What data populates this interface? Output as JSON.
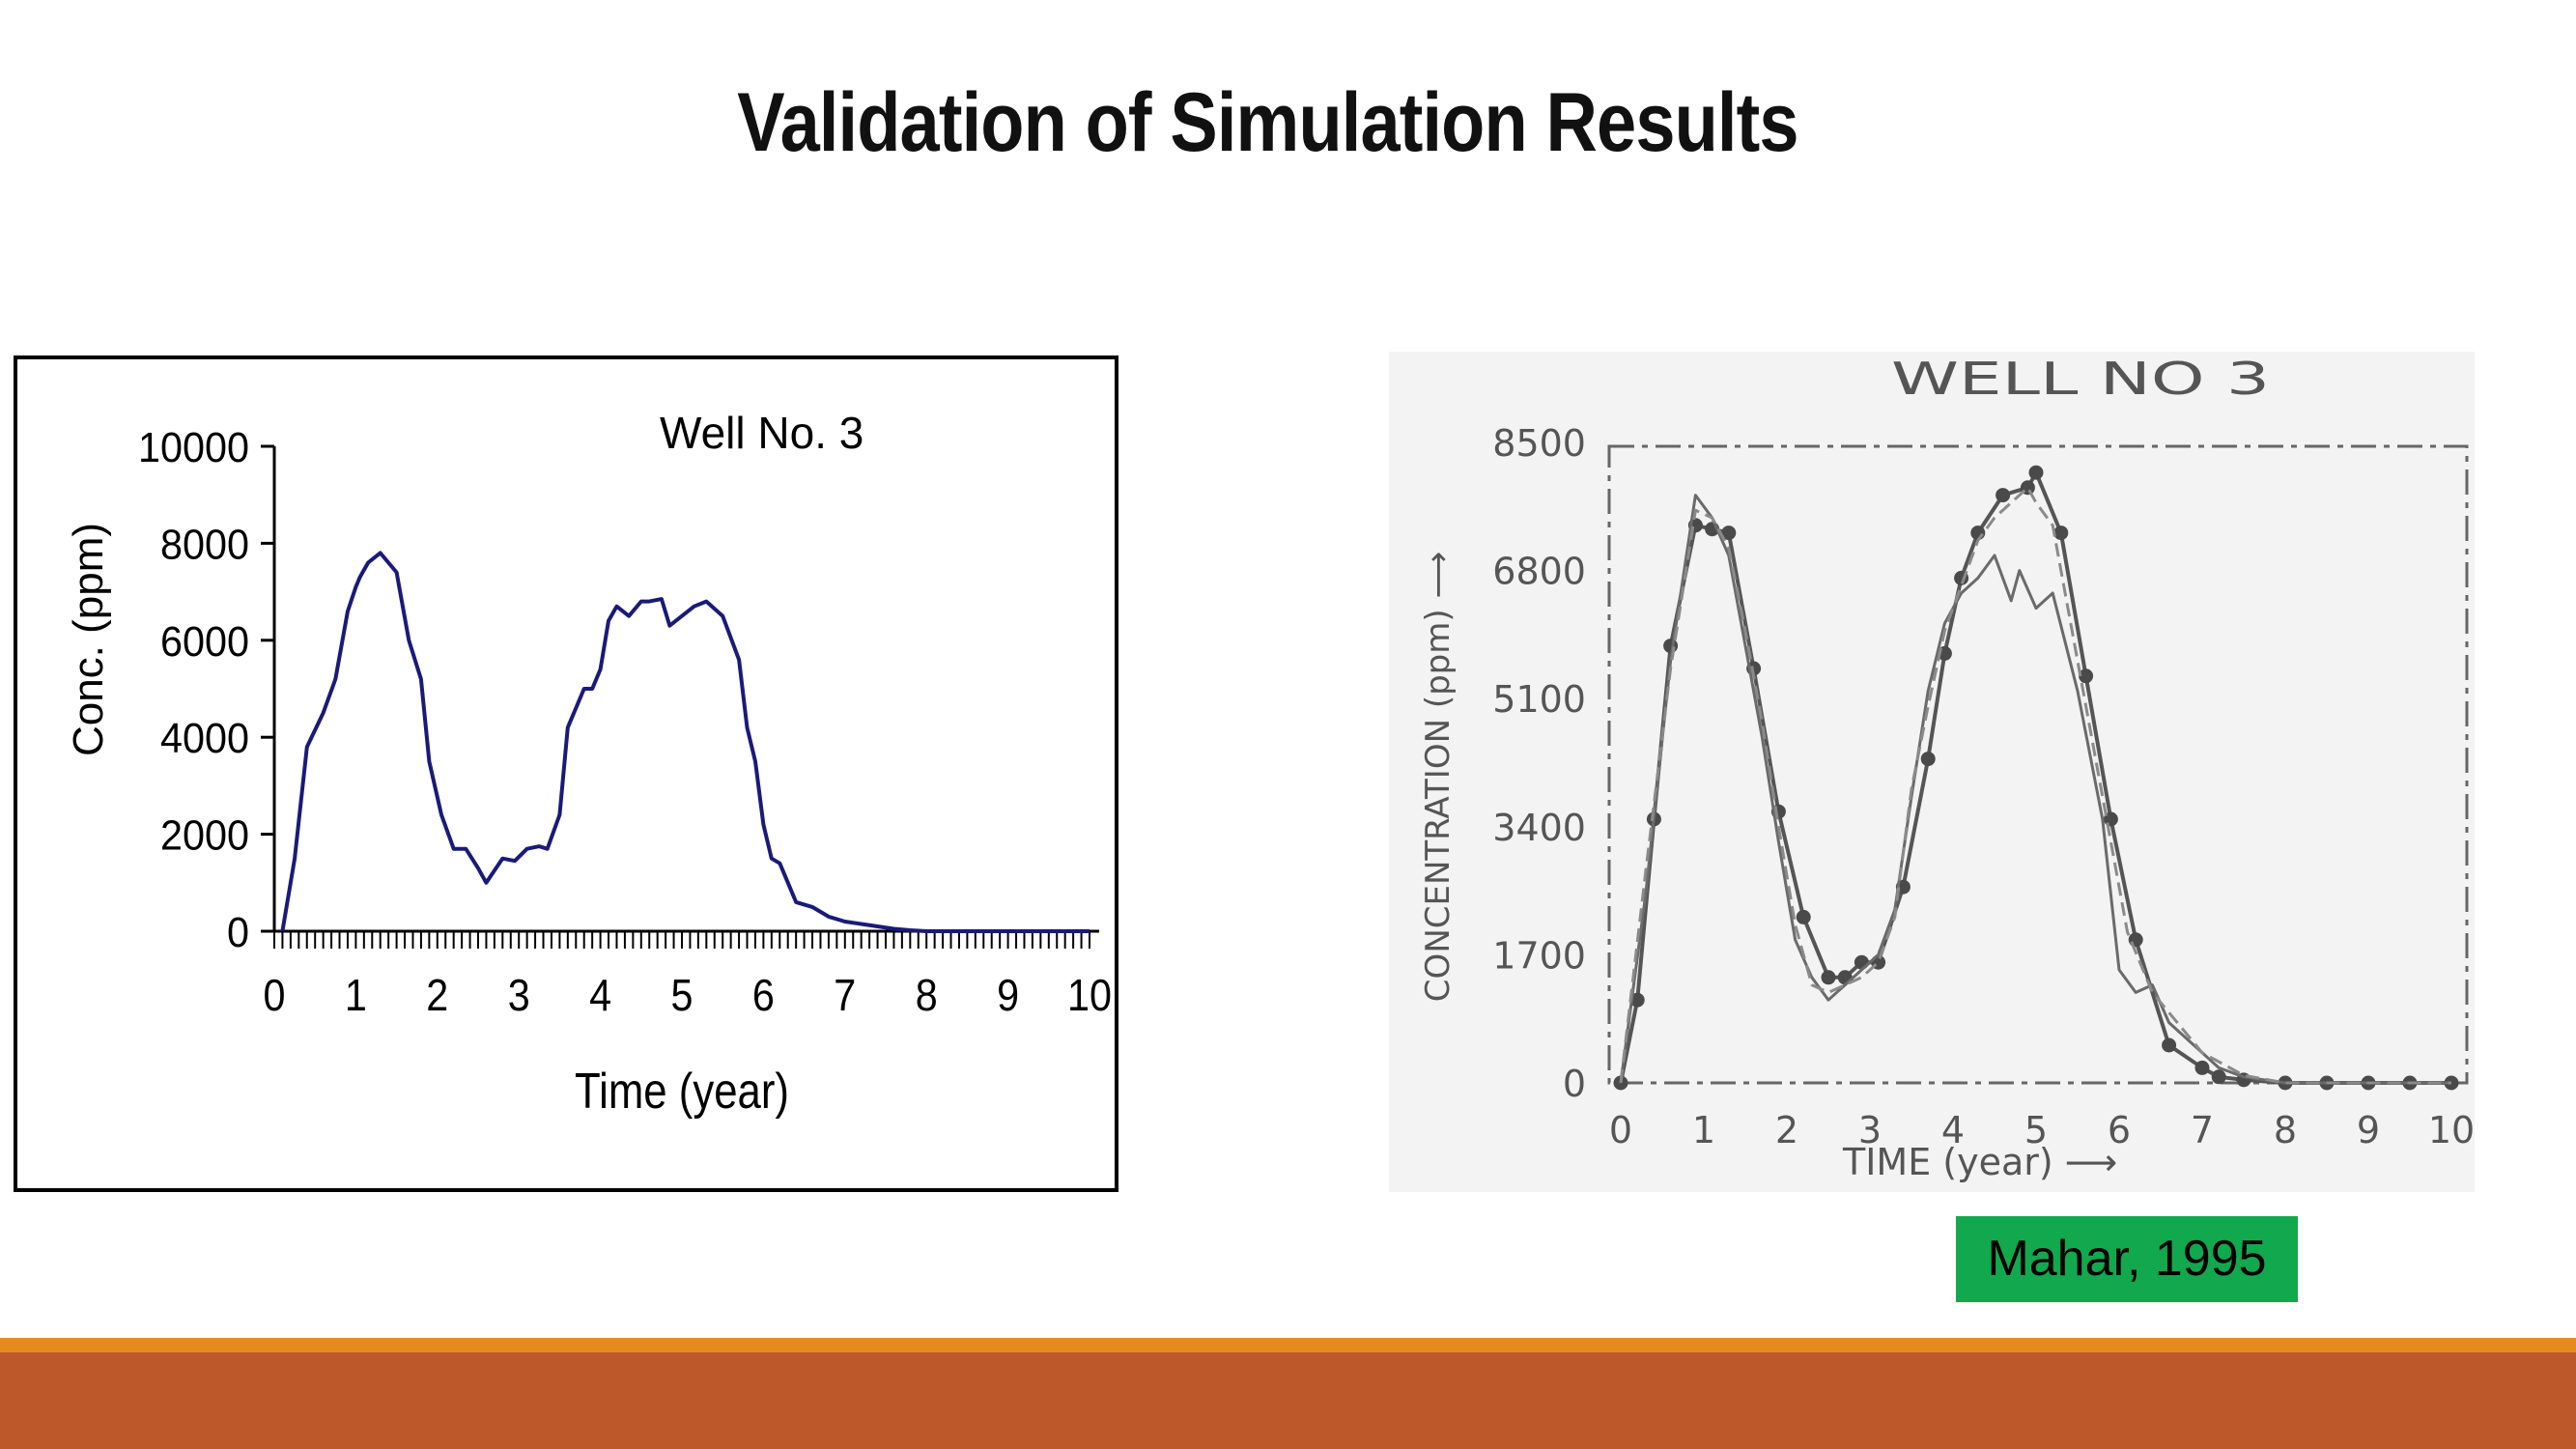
{
  "slide": {
    "title": "Validation of Simulation Results"
  },
  "citation": "Mahar, 1995",
  "theme": {
    "footer_line": "#e58a1f",
    "footer_bar": "#bd582b",
    "citation_bg": "#12a84d",
    "sim_line": "#1a1a7a"
  },
  "chart_data": [
    {
      "type": "line",
      "title": "Well No. 3",
      "xlabel": "Time (year)",
      "ylabel": "Conc. (ppm)",
      "xlim": [
        0,
        10
      ],
      "ylim": [
        0,
        10000
      ],
      "xticks": [
        "0",
        "1",
        "2",
        "3",
        "4",
        "5",
        "6",
        "7",
        "8",
        "9",
        "10"
      ],
      "yticks": [
        "0",
        "2000",
        "4000",
        "6000",
        "8000",
        "10000"
      ],
      "series": [
        {
          "x": [
            0.1,
            0.25,
            0.4,
            0.6,
            0.75,
            0.9,
            1.0,
            1.05,
            1.15,
            1.3,
            1.5,
            1.65,
            1.8,
            1.9,
            2.05,
            2.2,
            2.35,
            2.5,
            2.6,
            2.8,
            2.95,
            3.1,
            3.25,
            3.35,
            3.5,
            3.6,
            3.8,
            3.9,
            4.0,
            4.1,
            4.2,
            4.35,
            4.5,
            4.6,
            4.75,
            4.85,
            5.0,
            5.15,
            5.3,
            5.5,
            5.7,
            5.8,
            5.9,
            6.0,
            6.1,
            6.2,
            6.4,
            6.6,
            6.8,
            7.0,
            7.2,
            7.4,
            7.6,
            7.8,
            8.0,
            8.5,
            9.0,
            10.0
          ],
          "values": [
            0,
            1500,
            3800,
            4500,
            5200,
            6600,
            7100,
            7300,
            7600,
            7800,
            7400,
            6000,
            5200,
            3500,
            2400,
            1700,
            1700,
            1300,
            1000,
            1500,
            1450,
            1700,
            1750,
            1700,
            2400,
            4200,
            5000,
            5000,
            5400,
            6400,
            6700,
            6500,
            6800,
            6800,
            6850,
            6300,
            6500,
            6700,
            6800,
            6500,
            5600,
            4200,
            3500,
            2200,
            1500,
            1400,
            600,
            500,
            300,
            200,
            150,
            100,
            50,
            20,
            0,
            0,
            0,
            0
          ]
        }
      ]
    },
    {
      "type": "line",
      "title": "WELL NO 3",
      "xlabel": "TIME (year) ⟶",
      "ylabel": "CONCENTRATION (ppm) ⟶",
      "xlim": [
        0,
        10
      ],
      "ylim": [
        0,
        8500
      ],
      "xticks": [
        "0",
        "1",
        "2",
        "3",
        "4",
        "5",
        "6",
        "7",
        "8",
        "9",
        "10"
      ],
      "yticks": [
        "0",
        "1700",
        "3400",
        "5100",
        "6800",
        "8500"
      ],
      "series": [
        {
          "marker": "circle",
          "x": [
            0,
            0.2,
            0.4,
            0.6,
            0.9,
            1.1,
            1.3,
            1.6,
            1.9,
            2.2,
            2.5,
            2.7,
            2.9,
            3.1,
            3.4,
            3.7,
            3.9,
            4.1,
            4.3,
            4.6,
            4.9,
            5.0,
            5.3,
            5.6,
            5.9,
            6.2,
            6.6,
            7.0,
            7.2,
            7.5,
            8.0,
            8.5,
            9.0,
            9.5,
            10.0
          ],
          "values": [
            0,
            1100,
            3500,
            5800,
            7400,
            7350,
            7300,
            5500,
            3600,
            2200,
            1400,
            1400,
            1600,
            1600,
            2600,
            4300,
            5700,
            6700,
            7300,
            7800,
            7900,
            8100,
            7300,
            5400,
            3500,
            1900,
            500,
            200,
            80,
            40,
            0,
            0,
            0,
            0,
            0
          ]
        },
        {
          "x": [
            0,
            0.3,
            0.6,
            0.9,
            1.1,
            1.3,
            1.5,
            1.7,
            1.9,
            2.1,
            2.3,
            2.5,
            2.7,
            2.9,
            3.1,
            3.3,
            3.5,
            3.7,
            3.9,
            4.1,
            4.3,
            4.5,
            4.7,
            4.8,
            5.0,
            5.2,
            5.5,
            5.8,
            6.0,
            6.2,
            6.4,
            6.6,
            6.9,
            7.2,
            7.5,
            8.0,
            9.0,
            10.0
          ],
          "values": [
            0,
            2500,
            5600,
            7800,
            7500,
            7000,
            5800,
            4600,
            3200,
            1900,
            1400,
            1100,
            1300,
            1500,
            1700,
            2300,
            3800,
            5200,
            6100,
            6500,
            6700,
            7000,
            6400,
            6800,
            6300,
            6500,
            5200,
            3500,
            1500,
            1200,
            1300,
            800,
            500,
            200,
            80,
            0,
            0,
            0
          ]
        },
        {
          "x": [
            0,
            0.3,
            0.6,
            0.9,
            1.1,
            1.3,
            1.5,
            1.7,
            1.9,
            2.1,
            2.3,
            2.5,
            2.7,
            2.9,
            3.1,
            3.3,
            3.5,
            3.7,
            3.9,
            4.1,
            4.3,
            4.5,
            4.7,
            4.9,
            5.0,
            5.2,
            5.5,
            5.8,
            6.1,
            6.4,
            6.7,
            7.0,
            7.5,
            8.0,
            9.0,
            10.0
          ],
          "values": [
            0,
            2800,
            5500,
            7600,
            7500,
            7100,
            6000,
            4800,
            3400,
            2100,
            1300,
            1200,
            1300,
            1400,
            1600,
            2200,
            3900,
            5000,
            6000,
            6600,
            7200,
            7500,
            7700,
            7900,
            7700,
            7400,
            5600,
            3800,
            2000,
            1200,
            800,
            400,
            100,
            0,
            0,
            0
          ]
        }
      ]
    }
  ]
}
